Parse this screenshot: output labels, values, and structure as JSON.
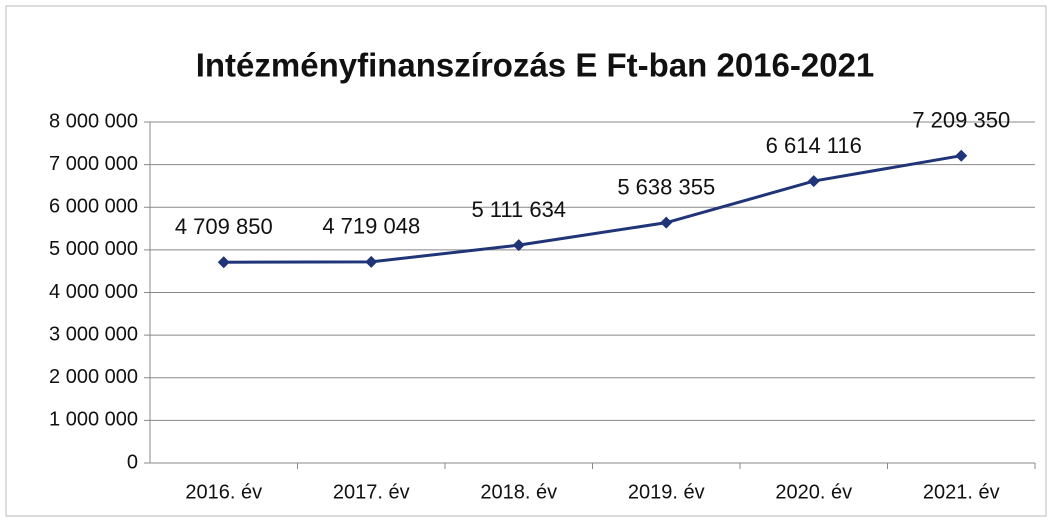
{
  "chart_data": {
    "type": "line",
    "title": "Intézményfinanszírozás E Ft-ban 2016-2021",
    "categories": [
      "2016. év",
      "2017. év",
      "2018. év",
      "2019. év",
      "2020. év",
      "2021. év"
    ],
    "series": [
      {
        "name": "Intézményfinanszírozás",
        "color": "#1f3578",
        "values": [
          4709850,
          4719048,
          5111634,
          5638355,
          6614116,
          7209350
        ],
        "value_labels": [
          "4 709 850",
          "4 719 048",
          "5 111 634",
          "5 638 355",
          "6 614 116",
          "7 209 350"
        ]
      }
    ],
    "ylim": [
      0,
      8000000
    ],
    "yticks": [
      0,
      {
        "value": 1000000,
        "label": "1 000 000"
      },
      {
        "value": 2000000,
        "label": "2 000 000"
      },
      {
        "value": 3000000,
        "label": "3 000 000"
      },
      {
        "value": 4000000,
        "label": "4 000 000"
      },
      {
        "value": 5000000,
        "label": "5 000 000"
      },
      {
        "value": 6000000,
        "label": "6 000 000"
      },
      {
        "value": 7000000,
        "label": "7 000 000"
      },
      {
        "value": 8000000,
        "label": "8 000 000"
      }
    ],
    "grid": true
  }
}
